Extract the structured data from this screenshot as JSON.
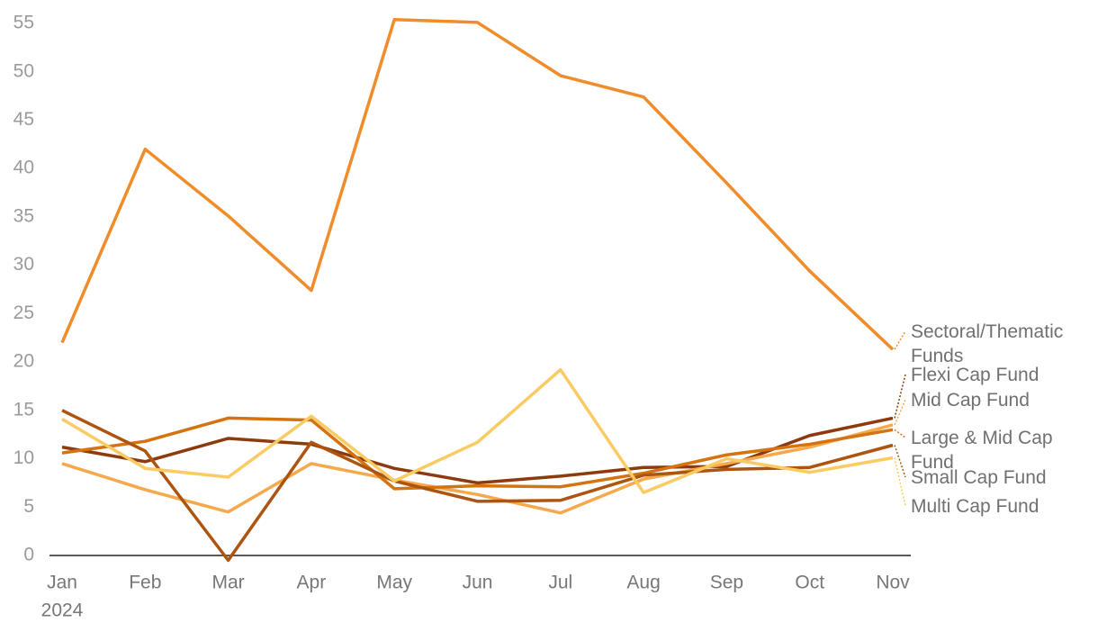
{
  "chart_data": {
    "type": "line",
    "categories": [
      "Jan",
      "Feb",
      "Mar",
      "Apr",
      "May",
      "Jun",
      "Jul",
      "Aug",
      "Sep",
      "Oct",
      "Nov"
    ],
    "year_label": "2024",
    "ylim": [
      0,
      55
    ],
    "yticks": [
      0,
      5,
      10,
      15,
      20,
      25,
      30,
      35,
      40,
      45,
      50,
      55
    ],
    "grid": false,
    "series": [
      {
        "name": "Sectoral/Thematic Funds",
        "color": "#f08c2a",
        "values": [
          22.0,
          42.0,
          35.1,
          27.4,
          55.4,
          55.1,
          49.6,
          47.4,
          38.5,
          29.4,
          21.3
        ]
      },
      {
        "name": "Flexi Cap Fund",
        "color": "#8c3a0e",
        "values": [
          11.2,
          9.7,
          12.1,
          11.5,
          9.0,
          7.5,
          8.2,
          9.1,
          9.2,
          12.4,
          14.2
        ]
      },
      {
        "name": "Mid Cap Fund",
        "color": "#f6a94c",
        "values": [
          9.5,
          6.8,
          4.5,
          9.5,
          7.8,
          6.3,
          4.4,
          7.9,
          9.5,
          11.2,
          13.5
        ]
      },
      {
        "name": "Large & Mid Cap Fund",
        "color": "#d4730f",
        "values": [
          10.6,
          11.8,
          14.2,
          14.0,
          6.9,
          7.2,
          7.1,
          8.5,
          10.4,
          11.5,
          13.0
        ]
      },
      {
        "name": "Small Cap Fund",
        "color": "#ad5410",
        "values": [
          15.0,
          10.8,
          -0.5,
          11.7,
          7.7,
          5.6,
          5.7,
          8.3,
          8.9,
          9.1,
          11.4
        ]
      },
      {
        "name": "Multi Cap Fund",
        "color": "#fbcb63",
        "values": [
          14.1,
          9.0,
          8.1,
          14.4,
          7.7,
          11.7,
          19.2,
          6.5,
          10.0,
          8.6,
          10.1
        ]
      }
    ]
  }
}
